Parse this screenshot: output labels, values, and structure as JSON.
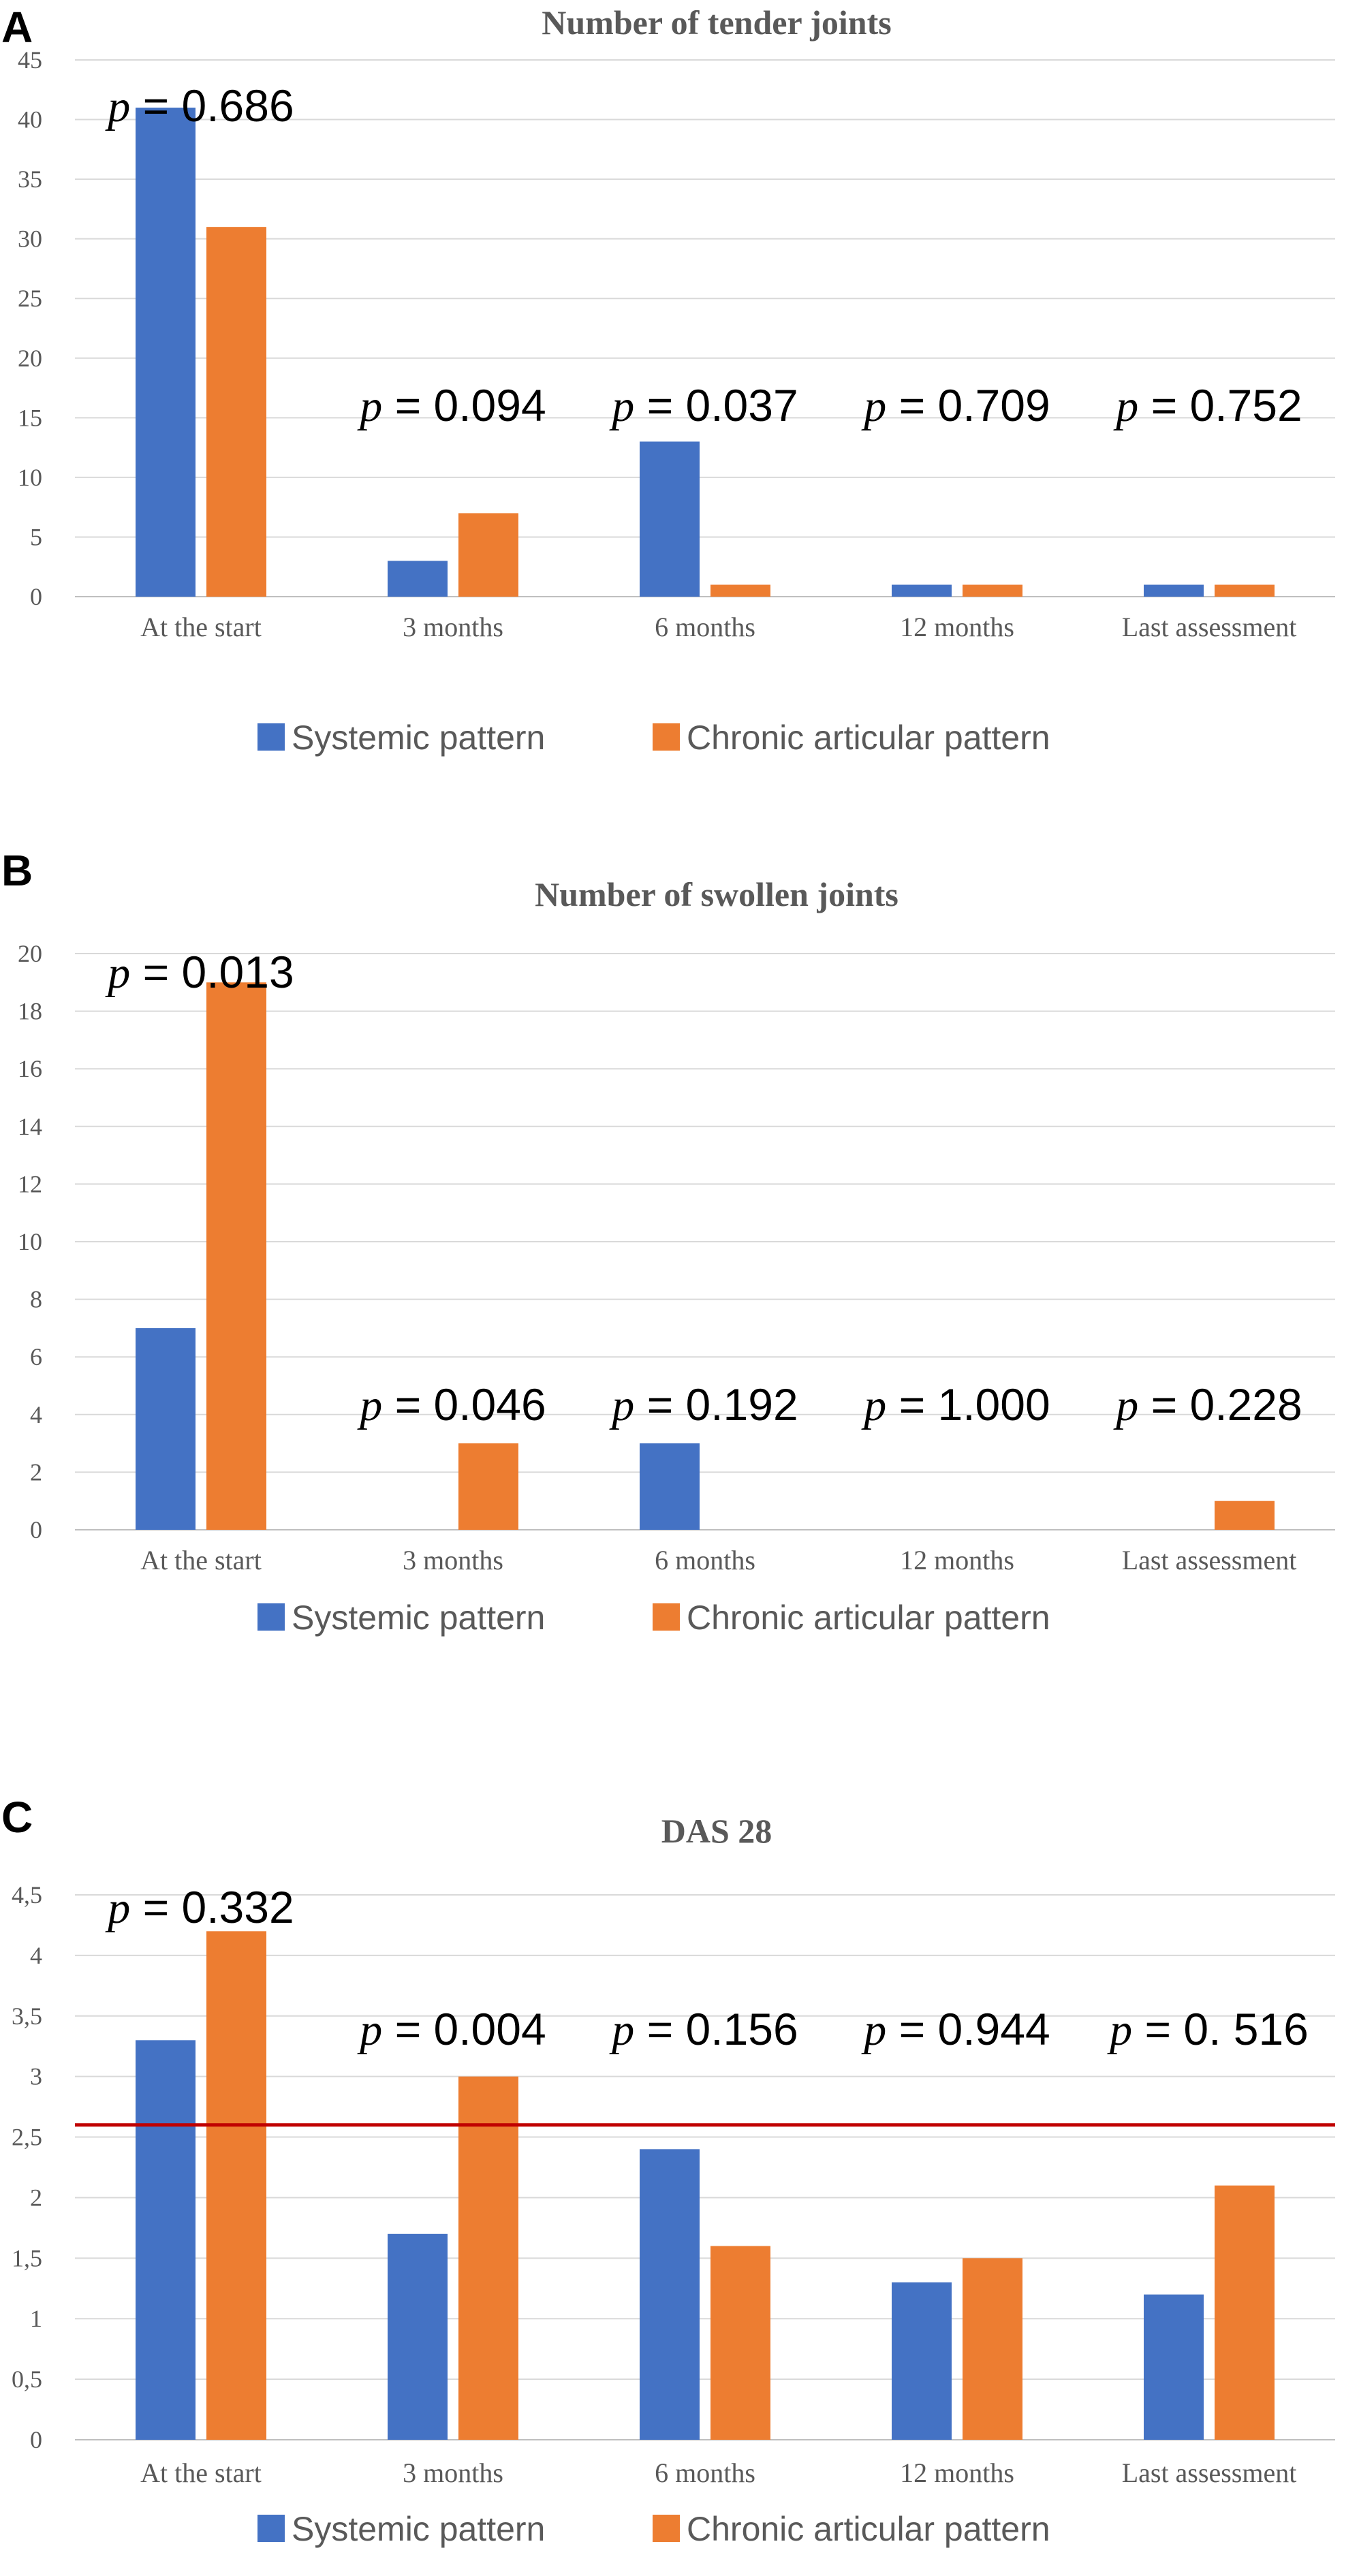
{
  "colors": {
    "systemic": "#4472C4",
    "chronic": "#ED7D31",
    "threshold": "#C00000",
    "text": "#595959"
  },
  "chart_data": [
    {
      "panel": "A",
      "type": "bar",
      "title": "Number  of tender joints",
      "categories": [
        "At the start",
        "3 months",
        "6 months",
        "12 months",
        "Last assessment"
      ],
      "series": [
        {
          "name": "Systemic pattern",
          "values": [
            41,
            3,
            13,
            1,
            1
          ]
        },
        {
          "name": "Chronic articular pattern",
          "values": [
            31,
            7,
            1,
            1,
            1
          ]
        }
      ],
      "ylim": [
        0,
        45
      ],
      "ytick_step": 5,
      "ytick_labels": [
        "0",
        "5",
        "10",
        "15",
        "20",
        "25",
        "30",
        "35",
        "40",
        "45"
      ],
      "p_values": [
        "0.686",
        "0.094",
        "0.037",
        "0.709",
        "0.752"
      ],
      "p_prefix": "p",
      "p_eq": " = ",
      "legend": "bottom"
    },
    {
      "panel": "B",
      "type": "bar",
      "title": "Number  of swollen joints",
      "categories": [
        "At the start",
        "3 months",
        "6 months",
        "12 months",
        "Last assessment"
      ],
      "series": [
        {
          "name": "Systemic pattern",
          "values": [
            7,
            0,
            3,
            0,
            0
          ]
        },
        {
          "name": "Chronic articular pattern",
          "values": [
            19,
            3,
            0,
            0,
            1
          ]
        }
      ],
      "ylim": [
        0,
        20
      ],
      "ytick_step": 2,
      "ytick_labels": [
        "0",
        "2",
        "4",
        "6",
        "8",
        "10",
        "12",
        "14",
        "16",
        "18",
        "20"
      ],
      "p_values": [
        "0.013",
        "0.046",
        "0.192",
        "1.000",
        "0.228"
      ],
      "p_prefix": "p",
      "p_eq": " = ",
      "legend": "bottom"
    },
    {
      "panel": "C",
      "type": "bar",
      "title": "DAS 28",
      "categories": [
        "At the start",
        "3 months",
        "6 months",
        "12 months",
        "Last assessment"
      ],
      "series": [
        {
          "name": "Systemic pattern",
          "values": [
            3.3,
            1.7,
            2.4,
            1.3,
            1.2
          ]
        },
        {
          "name": "Chronic articular pattern",
          "values": [
            4.2,
            3.0,
            1.6,
            1.5,
            2.1
          ]
        }
      ],
      "ylim": [
        0,
        4.5
      ],
      "ytick_step": 0.5,
      "ytick_labels": [
        "0",
        "0,5",
        "1",
        "1,5",
        "2",
        "2,5",
        "3",
        "3,5",
        "4",
        "4,5"
      ],
      "reference_line": 2.6,
      "p_values": [
        "0.332",
        "0.004",
        "0.156",
        "0.944",
        "0. 516"
      ],
      "p_prefix": "p",
      "p_eq": " = ",
      "legend": "bottom"
    }
  ]
}
